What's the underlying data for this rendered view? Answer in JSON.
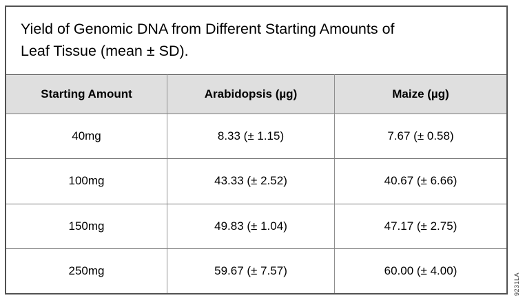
{
  "figure": {
    "title_line1": "Yield of Genomic DNA from Different Starting Amounts of",
    "title_line2": "Leaf Tissue (mean ± SD).",
    "watermark": "9231LA"
  },
  "table": {
    "columns": [
      "Starting Amount",
      "Arabidopsis (µg)",
      "Maize (µg)"
    ],
    "rows": [
      [
        "40mg",
        "8.33 (± 1.15)",
        "7.67 (± 0.58)"
      ],
      [
        "100mg",
        "43.33 (± 2.52)",
        "40.67 (± 6.66)"
      ],
      [
        "150mg",
        "49.83 (± 1.04)",
        "47.17 (± 2.75)"
      ],
      [
        "250mg",
        "59.67 (± 7.57)",
        "60.00 (± 4.00)"
      ]
    ]
  },
  "colors": {
    "header_bg": "#dfdfdf",
    "outer_border": "#515151",
    "inner_border": "#8f8f8f",
    "text": "#000000"
  },
  "chart_data": {
    "type": "table",
    "title": "Yield of Genomic DNA from Different Starting Amounts of Leaf Tissue (mean ± SD).",
    "categories": [
      "40mg",
      "100mg",
      "150mg",
      "250mg"
    ],
    "series": [
      {
        "name": "Arabidopsis (µg)",
        "values": [
          8.33,
          43.33,
          49.83,
          59.67
        ],
        "sd": [
          1.15,
          2.52,
          1.04,
          7.57
        ]
      },
      {
        "name": "Maize (µg)",
        "values": [
          7.67,
          40.67,
          47.17,
          60.0
        ],
        "sd": [
          0.58,
          6.66,
          2.75,
          4.0
        ]
      }
    ]
  }
}
